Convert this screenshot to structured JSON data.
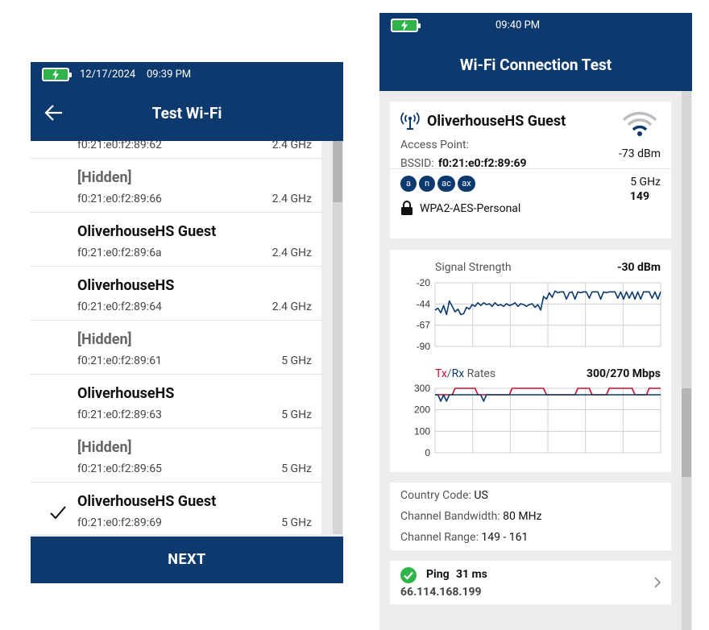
{
  "screen1": {
    "status": {
      "date": "12/17/2024",
      "time": "09:39 PM"
    },
    "title": "Test Wi-Fi",
    "networks": [
      {
        "ssid": "",
        "bssid": "f0:21:e0:f2:89:62",
        "band": "2.4 GHz",
        "hidden": false,
        "selected": false
      },
      {
        "ssid": "[Hidden]",
        "bssid": "f0:21:e0:f2:89:66",
        "band": "2.4 GHz",
        "hidden": true,
        "selected": false
      },
      {
        "ssid": "OliverhouseHS Guest",
        "bssid": "f0:21:e0:f2:89:6a",
        "band": "2.4 GHz",
        "hidden": false,
        "selected": false
      },
      {
        "ssid": "OliverhouseHS",
        "bssid": "f0:21:e0:f2:89:64",
        "band": "2.4 GHz",
        "hidden": false,
        "selected": false
      },
      {
        "ssid": "[Hidden]",
        "bssid": "f0:21:e0:f2:89:61",
        "band": "5 GHz",
        "hidden": true,
        "selected": false
      },
      {
        "ssid": "OliverhouseHS",
        "bssid": "f0:21:e0:f2:89:63",
        "band": "5 GHz",
        "hidden": false,
        "selected": false
      },
      {
        "ssid": "[Hidden]",
        "bssid": "f0:21:e0:f2:89:65",
        "band": "5 GHz",
        "hidden": true,
        "selected": false
      },
      {
        "ssid": "OliverhouseHS Guest",
        "bssid": "f0:21:e0:f2:89:69",
        "band": "5 GHz",
        "hidden": false,
        "selected": true
      }
    ],
    "next_label": "NEXT"
  },
  "screen2": {
    "status": {
      "time": "09:40 PM"
    },
    "title": "Wi-Fi Connection Test",
    "ap": {
      "ssid": "OliverhouseHS Guest",
      "access_point_label": "Access Point:",
      "bssid_label": "BSSID:",
      "bssid": "f0:21:e0:f2:89:69",
      "rssi": "-73 dBm",
      "band": "5 GHz",
      "channel": "149",
      "security": "WPA2-AES-Personal",
      "standards": [
        "a",
        "n",
        "ac",
        "ax"
      ]
    },
    "info": {
      "country_label": "Country Code:",
      "country": "US",
      "bandwidth_label": "Channel Bandwidth:",
      "bandwidth": "80 MHz",
      "range_label": "Channel Range:",
      "range": "149 - 161"
    },
    "ping": {
      "label": "Ping",
      "value": "31 ms",
      "ip": "66.114.168.199"
    },
    "colors": {
      "navy": "#0d3a6e",
      "tx": "#c8102e",
      "rx": "#0d3a6e",
      "ok": "#2fb34a"
    }
  },
  "chart_data": [
    {
      "type": "line",
      "title": "Signal Strength",
      "current": "-30 dBm",
      "yticks": [
        "-20",
        "-44",
        "-67",
        "-90"
      ],
      "ylim": [
        -90,
        -20
      ],
      "x": [
        0,
        1,
        2,
        3,
        4,
        5,
        6,
        7,
        8,
        9,
        10,
        11,
        12,
        13,
        14,
        15,
        16,
        17,
        18,
        19,
        20,
        21,
        22,
        23,
        24,
        25,
        26,
        27,
        28,
        29,
        30,
        31,
        32,
        33,
        34,
        35,
        36,
        37,
        38,
        39,
        40,
        41,
        42,
        43,
        44,
        45,
        46,
        47,
        48,
        49,
        50,
        51,
        52,
        53,
        54,
        55,
        56,
        57,
        58,
        59,
        60,
        61,
        62,
        63,
        64,
        65,
        66,
        67,
        68,
        69,
        70,
        71,
        72,
        73,
        74,
        75,
        76,
        77,
        78,
        79
      ],
      "series": [
        {
          "values": [
            -50,
            -48,
            -53,
            -45,
            -55,
            -40,
            -46,
            -52,
            -49,
            -55,
            -54,
            -47,
            -49,
            -44,
            -46,
            -42,
            -45,
            -42,
            -44,
            -43,
            -46,
            -42,
            -45,
            -44,
            -46,
            -43,
            -45,
            -44,
            -42,
            -46,
            -43,
            -44,
            -46,
            -44,
            -43,
            -47,
            -44,
            -50,
            -35,
            -38,
            -31,
            -36,
            -29,
            -31,
            -30,
            -30,
            -38,
            -31,
            -30,
            -38,
            -30,
            -31,
            -30,
            -30,
            -37,
            -30,
            -30,
            -30,
            -38,
            -30,
            -31,
            -30,
            -30,
            -30,
            -37,
            -30,
            -38,
            -30,
            -37,
            -30,
            -38,
            -30,
            -38,
            -30,
            -30,
            -30,
            -37,
            -30,
            -38,
            -30
          ]
        }
      ]
    },
    {
      "type": "line",
      "title_tx": "Tx",
      "title_sep": "/",
      "title_rx": "Rx",
      "title_rest": " Rates",
      "current": "300/270 Mbps",
      "yticks": [
        "300",
        "200",
        "100",
        "0"
      ],
      "ylim": [
        0,
        300
      ],
      "x": [
        0,
        1,
        2,
        3,
        4,
        5,
        6,
        7,
        8,
        9,
        10,
        11,
        12,
        13,
        14,
        15,
        16,
        17,
        18,
        19,
        20,
        21,
        22,
        23,
        24,
        25,
        26,
        27,
        28,
        29,
        30,
        31,
        32,
        33,
        34,
        35,
        36,
        37,
        38,
        39,
        40,
        41,
        42,
        43,
        44,
        45,
        46,
        47,
        48,
        49,
        50,
        51,
        52,
        53,
        54,
        55,
        56,
        57,
        58,
        59,
        60,
        61,
        62,
        63,
        64,
        65,
        66,
        67,
        68,
        69,
        70,
        71,
        72,
        73,
        74,
        75,
        76,
        77,
        78,
        79
      ],
      "series": [
        {
          "name": "Tx",
          "values": [
            270,
            270,
            270,
            270,
            270,
            270,
            270,
            300,
            300,
            300,
            300,
            300,
            300,
            300,
            300,
            270,
            270,
            270,
            270,
            270,
            270,
            270,
            270,
            270,
            270,
            270,
            270,
            300,
            300,
            300,
            300,
            300,
            300,
            300,
            300,
            300,
            300,
            300,
            300,
            270,
            270,
            270,
            270,
            270,
            270,
            270,
            270,
            270,
            270,
            270,
            300,
            300,
            300,
            300,
            300,
            270,
            270,
            270,
            270,
            270,
            270,
            300,
            300,
            300,
            300,
            300,
            300,
            300,
            300,
            300,
            270,
            270,
            270,
            270,
            270,
            300,
            300,
            300,
            300,
            300
          ]
        },
        {
          "name": "Rx",
          "values": [
            270,
            270,
            240,
            270,
            240,
            270,
            270,
            270,
            270,
            270,
            270,
            270,
            270,
            270,
            270,
            270,
            270,
            240,
            270,
            270,
            270,
            270,
            270,
            270,
            270,
            270,
            270,
            270,
            270,
            270,
            270,
            270,
            270,
            270,
            270,
            270,
            270,
            270,
            270,
            270,
            270,
            270,
            270,
            270,
            270,
            270,
            270,
            270,
            270,
            270,
            270,
            270,
            270,
            270,
            270,
            270,
            270,
            270,
            270,
            270,
            270,
            270,
            270,
            270,
            270,
            270,
            270,
            270,
            270,
            270,
            270,
            270,
            270,
            270,
            270,
            270,
            270,
            270,
            270,
            270
          ]
        }
      ]
    }
  ]
}
